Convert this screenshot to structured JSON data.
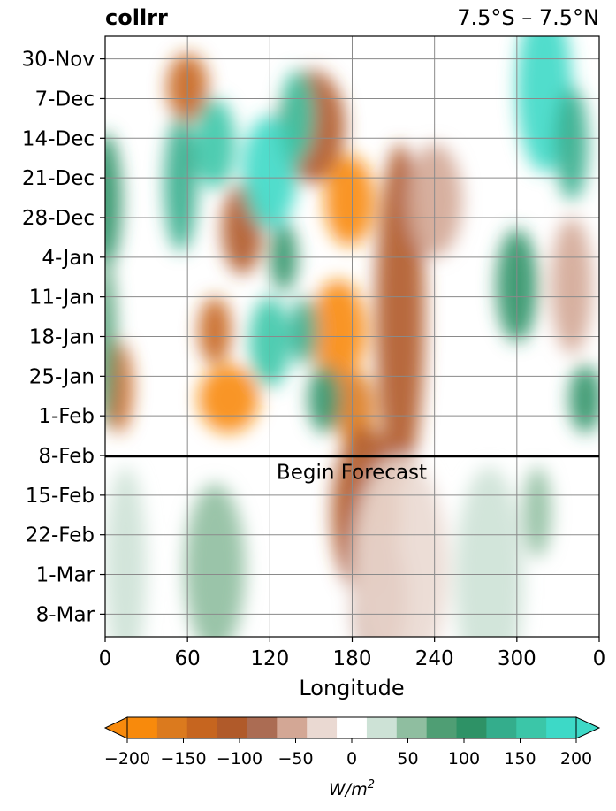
{
  "chart_data": {
    "type": "heatmap",
    "title": "collrr",
    "subtitle": "7.5°S – 7.5°N",
    "xlabel": "Longitude",
    "x_ticks": [
      "0",
      "60",
      "120",
      "180",
      "240",
      "300",
      "0"
    ],
    "y_ticks": [
      "30-Nov",
      "7-Dec",
      "14-Dec",
      "21-Dec",
      "28-Dec",
      "4-Jan",
      "11-Jan",
      "18-Jan",
      "25-Jan",
      "1-Feb",
      "8-Feb",
      "15-Feb",
      "22-Feb",
      "1-Mar",
      "8-Mar"
    ],
    "forecast_line_at": "8-Feb",
    "annotation": "Begin Forecast",
    "grid": true,
    "colorbar": {
      "label": "W/m²",
      "ticks": [
        "−200",
        "−150",
        "−100",
        "−50",
        "0",
        "50",
        "100",
        "150",
        "200"
      ],
      "levels": [
        -200,
        -175,
        -150,
        -125,
        -100,
        -75,
        -50,
        -25,
        25,
        50,
        75,
        100,
        125,
        150,
        175,
        200
      ],
      "colors": [
        "#f88a0c",
        "#db7a1e",
        "#c6651f",
        "#b05a2a",
        "#ab6c53",
        "#d3a795",
        "#ead9d2",
        "#ffffff",
        "#cde2d6",
        "#8fbea0",
        "#4f9e74",
        "#2e9266",
        "#34ad8c",
        "#3bc6a8",
        "#3dd9c7"
      ],
      "extend": "both"
    },
    "features": [
      {
        "lon": 150,
        "day": 12,
        "dlon": 25,
        "dday": 10,
        "level": -120
      },
      {
        "lon": 178,
        "day": 25,
        "dlon": 18,
        "dday": 8,
        "level": -190
      },
      {
        "lon": 170,
        "day": 48,
        "dlon": 20,
        "dday": 9,
        "level": -200
      },
      {
        "lon": 182,
        "day": 62,
        "dlon": 14,
        "dday": 7,
        "level": -160
      },
      {
        "lon": 90,
        "day": 60,
        "dlon": 22,
        "dday": 6,
        "level": -200
      },
      {
        "lon": 80,
        "day": 48,
        "dlon": 12,
        "dday": 6,
        "level": -130
      },
      {
        "lon": 100,
        "day": 30,
        "dlon": 15,
        "dday": 8,
        "level": -120
      },
      {
        "lon": 10,
        "day": 58,
        "dlon": 10,
        "dday": 8,
        "level": -140
      },
      {
        "lon": 60,
        "day": 5,
        "dlon": 15,
        "dday": 6,
        "level": -130
      },
      {
        "lon": 215,
        "day": 45,
        "dlon": 18,
        "dday": 30,
        "level": -110
      },
      {
        "lon": 240,
        "day": 25,
        "dlon": 20,
        "dday": 10,
        "level": -60
      },
      {
        "lon": 340,
        "day": 40,
        "dlon": 15,
        "dday": 12,
        "level": -70
      },
      {
        "lon": 120,
        "day": 20,
        "dlon": 20,
        "dday": 10,
        "level": 200
      },
      {
        "lon": 80,
        "day": 15,
        "dlon": 15,
        "dday": 8,
        "level": 170
      },
      {
        "lon": 140,
        "day": 10,
        "dlon": 12,
        "dday": 8,
        "level": 150
      },
      {
        "lon": 55,
        "day": 22,
        "dlon": 12,
        "dday": 12,
        "level": 130
      },
      {
        "lon": 120,
        "day": 50,
        "dlon": 15,
        "dday": 8,
        "level": 160
      },
      {
        "lon": 145,
        "day": 48,
        "dlon": 10,
        "dday": 6,
        "level": 140
      },
      {
        "lon": 130,
        "day": 35,
        "dlon": 10,
        "dday": 6,
        "level": 120
      },
      {
        "lon": 320,
        "day": 5,
        "dlon": 20,
        "dday": 15,
        "level": 180
      },
      {
        "lon": 340,
        "day": 15,
        "dlon": 12,
        "dday": 10,
        "level": 130
      },
      {
        "lon": 160,
        "day": 60,
        "dlon": 12,
        "dday": 6,
        "level": 110
      },
      {
        "lon": 300,
        "day": 40,
        "dlon": 15,
        "dday": 10,
        "level": 100
      },
      {
        "lon": 350,
        "day": 60,
        "dlon": 12,
        "dday": 6,
        "level": 110
      },
      {
        "lon": 0,
        "day": 25,
        "dlon": 12,
        "dday": 12,
        "level": 100
      },
      {
        "lon": 0,
        "day": 50,
        "dlon": 8,
        "dday": 15,
        "level": 90
      },
      {
        "lon": 190,
        "day": 80,
        "dlon": 25,
        "dday": 15,
        "level": -110
      },
      {
        "lon": 200,
        "day": 95,
        "dlon": 20,
        "dday": 12,
        "level": -90
      },
      {
        "lon": 215,
        "day": 90,
        "dlon": 35,
        "dday": 20,
        "level": -45
      },
      {
        "lon": 80,
        "day": 90,
        "dlon": 22,
        "dday": 15,
        "level": 70
      },
      {
        "lon": 15,
        "day": 90,
        "dlon": 15,
        "dday": 18,
        "level": 35
      },
      {
        "lon": 315,
        "day": 80,
        "dlon": 10,
        "dday": 8,
        "level": 60
      },
      {
        "lon": 280,
        "day": 92,
        "dlon": 25,
        "dday": 20,
        "level": 30
      }
    ]
  }
}
